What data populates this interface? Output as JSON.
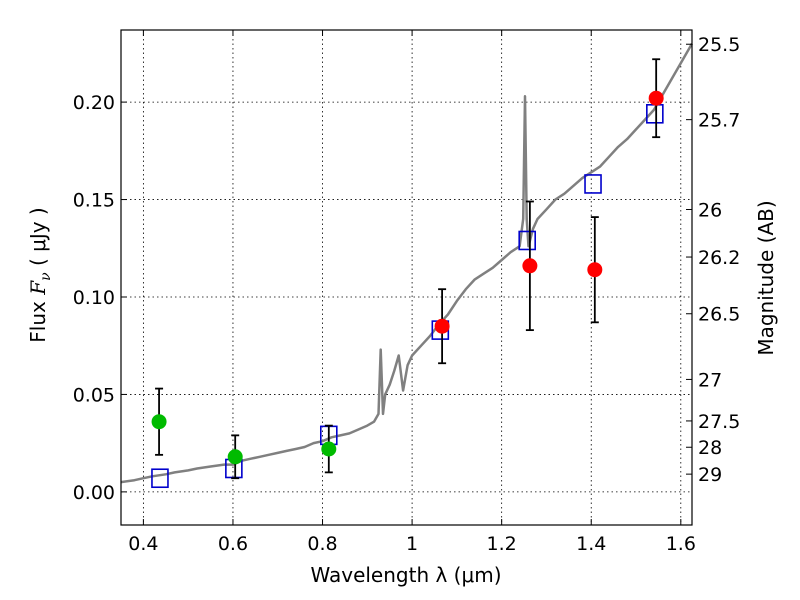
{
  "chart_data": {
    "type": "scatter",
    "title": "",
    "xlabel": "Wavelength  λ (μm)",
    "ylabel_prefix": "Flux  ",
    "ylabel_symbol": "F",
    "ylabel_subscript": "ν",
    "ylabel_suffix": "  ( μJy )",
    "ylabel_right": "Magnitude (AB)",
    "xlim": [
      0.35,
      1.625
    ],
    "ylim": [
      -0.017,
      0.237
    ],
    "xticks": [
      0.4,
      0.6,
      0.8,
      1.0,
      1.2,
      1.4,
      1.6
    ],
    "xtick_labels": [
      "0.4",
      "0.6",
      "0.8",
      "1",
      "1.2",
      "1.4",
      "1.6"
    ],
    "yticks": [
      0.0,
      0.05,
      0.1,
      0.15,
      0.2
    ],
    "ytick_labels": [
      "0.00",
      "0.05",
      "0.10",
      "0.15",
      "0.20"
    ],
    "right_ticks": [
      {
        "label": "25.5",
        "flux": 0.2297
      },
      {
        "label": "25.7",
        "flux": 0.191
      },
      {
        "label": "26",
        "flux": 0.1449
      },
      {
        "label": "26.2",
        "flux": 0.1205
      },
      {
        "label": "26.5",
        "flux": 0.0914
      },
      {
        "label": "27",
        "flux": 0.0577
      },
      {
        "label": "27.5",
        "flux": 0.0364
      },
      {
        "label": "28",
        "flux": 0.0229
      },
      {
        "label": "29",
        "flux": 0.0091
      }
    ],
    "grid": true,
    "colors": {
      "model": "#808080",
      "green": "#00bb00",
      "red": "#ff0000",
      "square": "#0000cc",
      "errorbar": "#000000"
    },
    "model_spectrum": {
      "x": [
        0.35,
        0.38,
        0.4,
        0.42,
        0.45,
        0.47,
        0.5,
        0.52,
        0.55,
        0.58,
        0.6,
        0.62,
        0.64,
        0.66,
        0.68,
        0.7,
        0.72,
        0.74,
        0.76,
        0.78,
        0.8,
        0.82,
        0.84,
        0.86,
        0.88,
        0.9,
        0.915,
        0.925,
        0.93,
        0.935,
        0.94,
        0.95,
        0.96,
        0.97,
        0.98,
        0.99,
        1.0,
        1.02,
        1.04,
        1.06,
        1.08,
        1.1,
        1.12,
        1.14,
        1.16,
        1.18,
        1.2,
        1.22,
        1.24,
        1.248,
        1.252,
        1.256,
        1.26,
        1.27,
        1.28,
        1.3,
        1.32,
        1.34,
        1.36,
        1.38,
        1.4,
        1.42,
        1.44,
        1.46,
        1.48,
        1.5,
        1.52,
        1.54,
        1.56,
        1.58,
        1.6,
        1.625
      ],
      "y": [
        0.005,
        0.006,
        0.007,
        0.008,
        0.009,
        0.01,
        0.011,
        0.012,
        0.013,
        0.014,
        0.014,
        0.016,
        0.017,
        0.018,
        0.019,
        0.02,
        0.021,
        0.022,
        0.023,
        0.025,
        0.026,
        0.028,
        0.029,
        0.03,
        0.032,
        0.034,
        0.036,
        0.04,
        0.073,
        0.04,
        0.05,
        0.055,
        0.062,
        0.07,
        0.052,
        0.065,
        0.07,
        0.075,
        0.08,
        0.086,
        0.091,
        0.098,
        0.104,
        0.109,
        0.112,
        0.115,
        0.119,
        0.123,
        0.126,
        0.14,
        0.203,
        0.14,
        0.126,
        0.135,
        0.14,
        0.145,
        0.15,
        0.153,
        0.157,
        0.161,
        0.164,
        0.167,
        0.172,
        0.177,
        0.181,
        0.186,
        0.191,
        0.196,
        0.204,
        0.212,
        0.22,
        0.23
      ]
    },
    "green_points": [
      {
        "x": 0.435,
        "y": 0.036,
        "err": 0.017
      },
      {
        "x": 0.605,
        "y": 0.018,
        "err": 0.011
      },
      {
        "x": 0.814,
        "y": 0.022,
        "err": 0.012
      }
    ],
    "red_points": [
      {
        "x": 1.067,
        "y": 0.085,
        "err": 0.019
      },
      {
        "x": 1.263,
        "y": 0.116,
        "err": 0.033
      },
      {
        "x": 1.408,
        "y": 0.114,
        "err": 0.027
      },
      {
        "x": 1.545,
        "y": 0.202,
        "err": 0.02
      }
    ],
    "model_squares": [
      {
        "x": 0.437,
        "y": 0.007
      },
      {
        "x": 0.602,
        "y": 0.012
      },
      {
        "x": 0.814,
        "y": 0.029
      },
      {
        "x": 1.063,
        "y": 0.083
      },
      {
        "x": 1.257,
        "y": 0.129
      },
      {
        "x": 1.404,
        "y": 0.158
      },
      {
        "x": 1.542,
        "y": 0.194
      }
    ]
  }
}
